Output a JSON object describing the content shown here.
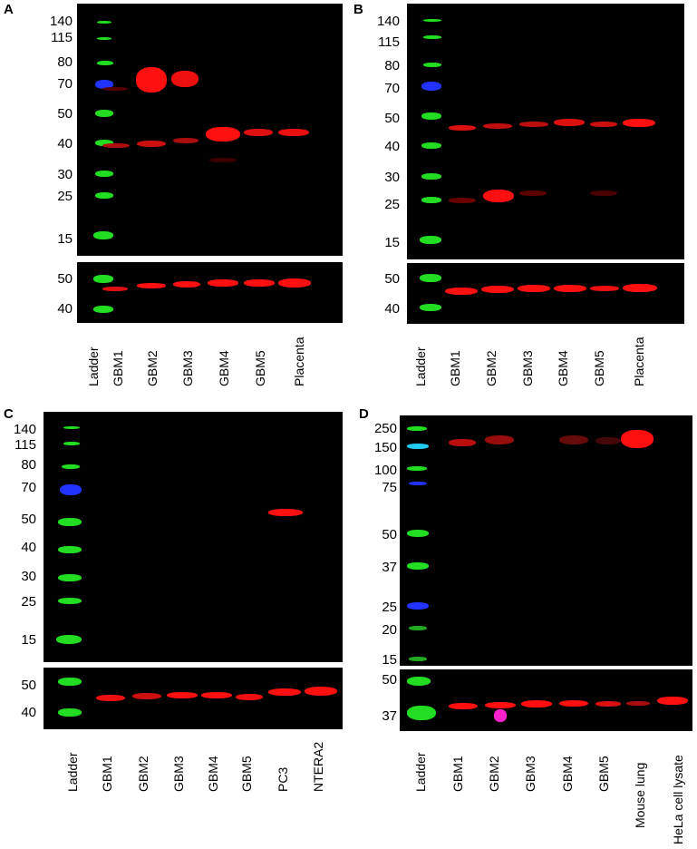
{
  "panels": [
    {
      "id": "A",
      "letter": "A",
      "main_mw": [
        "140",
        "115",
        "80",
        "70",
        "50",
        "40",
        "30",
        "25",
        "15"
      ],
      "loading_mw": [
        "50",
        "40"
      ],
      "lanes": [
        "Ladder",
        "GBM1",
        "GBM2",
        "GBM3",
        "GBM4",
        "GBM5",
        "Placenta"
      ],
      "colors": {
        "ladder_green": "#22dd22",
        "ladder_blue": "#2233ff",
        "band_red": "#ff1010"
      }
    },
    {
      "id": "B",
      "letter": "B",
      "main_mw": [
        "140",
        "115",
        "80",
        "70",
        "50",
        "40",
        "30",
        "25",
        "15"
      ],
      "loading_mw": [
        "50",
        "40"
      ],
      "lanes": [
        "Ladder",
        "GBM1",
        "GBM2",
        "GBM3",
        "GBM4",
        "GBM5",
        "Placenta"
      ],
      "colors": {
        "ladder_green": "#22dd22",
        "ladder_blue": "#2233ff",
        "band_red": "#ff1010"
      }
    },
    {
      "id": "C",
      "letter": "C",
      "main_mw": [
        "140",
        "115",
        "80",
        "70",
        "50",
        "40",
        "30",
        "25",
        "15"
      ],
      "loading_mw": [
        "50",
        "40"
      ],
      "lanes": [
        "Ladder",
        "GBM1",
        "GBM2",
        "GBM3",
        "GBM4",
        "GBM5",
        "PC3",
        "NTERA2"
      ],
      "colors": {
        "ladder_green": "#22dd22",
        "ladder_blue": "#2233ff",
        "band_red": "#ff1010"
      }
    },
    {
      "id": "D",
      "letter": "D",
      "main_mw": [
        "250",
        "150",
        "100",
        "75",
        "50",
        "37",
        "25",
        "20",
        "15"
      ],
      "loading_mw": [
        "50",
        "37"
      ],
      "lanes": [
        "Ladder",
        "GBM1",
        "GBM2",
        "GBM3",
        "GBM4",
        "GBM5",
        "Mouse lung",
        "HeLa cell lysate"
      ],
      "colors": {
        "ladder_green": "#22dd22",
        "ladder_blue": "#2233ff",
        "band_red": "#ff1010"
      }
    }
  ]
}
